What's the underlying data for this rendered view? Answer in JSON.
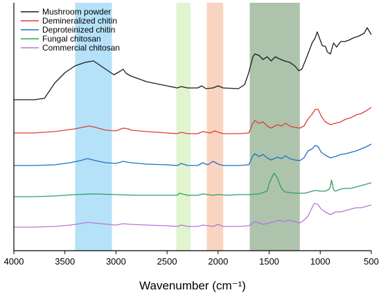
{
  "chart_data": {
    "type": "line",
    "title": "",
    "xlabel": "Wavenumber (cm⁻¹)",
    "ylabel": "",
    "xlim": [
      4000,
      500
    ],
    "x_reversed": true,
    "x_ticks": [
      4000,
      3500,
      3000,
      2500,
      2000,
      1500,
      1000,
      500
    ],
    "y_ticks_shown": false,
    "y_units": "arbitrary (stacked spectra)",
    "grid": false,
    "legend_position": "top-left",
    "highlight_bands": [
      {
        "from": 3400,
        "to": 3040,
        "color": "#a8ddf7"
      },
      {
        "from": 2410,
        "to": 2270,
        "color": "#dcf2c8"
      },
      {
        "from": 2110,
        "to": 1950,
        "color": "#f8cdb5"
      },
      {
        "from": 1690,
        "to": 1200,
        "color": "#9fb89c"
      }
    ],
    "series": [
      {
        "name": "Mushroom powder",
        "color": "#1a1a1a",
        "points": [
          [
            4000,
            144
          ],
          [
            3800,
            144
          ],
          [
            3700,
            142
          ],
          [
            3600,
            120
          ],
          [
            3500,
            105
          ],
          [
            3400,
            95
          ],
          [
            3300,
            90
          ],
          [
            3220,
            88
          ],
          [
            3120,
            98
          ],
          [
            3020,
            108
          ],
          [
            2960,
            103
          ],
          [
            2930,
            100
          ],
          [
            2900,
            106
          ],
          [
            2850,
            110
          ],
          [
            2700,
            118
          ],
          [
            2500,
            124
          ],
          [
            2400,
            127
          ],
          [
            2360,
            125
          ],
          [
            2300,
            127
          ],
          [
            2200,
            127
          ],
          [
            2160,
            124
          ],
          [
            2120,
            128
          ],
          [
            2050,
            127
          ],
          [
            2000,
            124
          ],
          [
            1950,
            127
          ],
          [
            1800,
            128
          ],
          [
            1740,
            122
          ],
          [
            1700,
            105
          ],
          [
            1660,
            82
          ],
          [
            1640,
            78
          ],
          [
            1600,
            80
          ],
          [
            1560,
            86
          ],
          [
            1520,
            82
          ],
          [
            1480,
            88
          ],
          [
            1440,
            82
          ],
          [
            1400,
            85
          ],
          [
            1350,
            88
          ],
          [
            1300,
            90
          ],
          [
            1250,
            95
          ],
          [
            1210,
            102
          ],
          [
            1180,
            100
          ],
          [
            1120,
            78
          ],
          [
            1080,
            62
          ],
          [
            1050,
            55
          ],
          [
            1030,
            46
          ],
          [
            1000,
            58
          ],
          [
            980,
            66
          ],
          [
            950,
            67
          ],
          [
            930,
            75
          ],
          [
            900,
            78
          ],
          [
            870,
            62
          ],
          [
            840,
            68
          ],
          [
            800,
            60
          ],
          [
            760,
            60
          ],
          [
            720,
            58
          ],
          [
            680,
            55
          ],
          [
            620,
            52
          ],
          [
            570,
            48
          ],
          [
            540,
            40
          ],
          [
            500,
            50
          ]
        ]
      },
      {
        "name": "Demineralized chitin",
        "color": "#e03c31",
        "points": [
          [
            4000,
            192
          ],
          [
            3800,
            192
          ],
          [
            3600,
            190
          ],
          [
            3500,
            188
          ],
          [
            3400,
            186
          ],
          [
            3300,
            183
          ],
          [
            3260,
            182
          ],
          [
            3200,
            184
          ],
          [
            3100,
            188
          ],
          [
            3000,
            189
          ],
          [
            2930,
            185
          ],
          [
            2880,
            186
          ],
          [
            2850,
            188
          ],
          [
            2700,
            190
          ],
          [
            2500,
            192
          ],
          [
            2400,
            193
          ],
          [
            2360,
            191
          ],
          [
            2300,
            193
          ],
          [
            2200,
            193
          ],
          [
            2150,
            190
          ],
          [
            2080,
            192
          ],
          [
            2030,
            189
          ],
          [
            2000,
            191
          ],
          [
            1950,
            193
          ],
          [
            1800,
            193
          ],
          [
            1700,
            192
          ],
          [
            1660,
            178
          ],
          [
            1640,
            174
          ],
          [
            1600,
            178
          ],
          [
            1560,
            176
          ],
          [
            1520,
            182
          ],
          [
            1480,
            185
          ],
          [
            1420,
            180
          ],
          [
            1380,
            182
          ],
          [
            1340,
            178
          ],
          [
            1300,
            182
          ],
          [
            1250,
            184
          ],
          [
            1200,
            185
          ],
          [
            1160,
            182
          ],
          [
            1120,
            172
          ],
          [
            1080,
            165
          ],
          [
            1050,
            158
          ],
          [
            1020,
            158
          ],
          [
            990,
            168
          ],
          [
            950,
            176
          ],
          [
            900,
            180
          ],
          [
            850,
            178
          ],
          [
            800,
            176
          ],
          [
            750,
            172
          ],
          [
            700,
            170
          ],
          [
            650,
            166
          ],
          [
            600,
            164
          ],
          [
            550,
            160
          ],
          [
            500,
            155
          ]
        ]
      },
      {
        "name": "Deproteinized chitin",
        "color": "#1f6fc5",
        "points": [
          [
            4000,
            239
          ],
          [
            3800,
            239
          ],
          [
            3600,
            238
          ],
          [
            3450,
            235
          ],
          [
            3350,
            232
          ],
          [
            3280,
            229
          ],
          [
            3200,
            232
          ],
          [
            3100,
            235
          ],
          [
            3000,
            236
          ],
          [
            2930,
            233
          ],
          [
            2850,
            235
          ],
          [
            2700,
            237
          ],
          [
            2500,
            238
          ],
          [
            2400,
            239
          ],
          [
            2360,
            236
          ],
          [
            2300,
            239
          ],
          [
            2200,
            239
          ],
          [
            2150,
            235
          ],
          [
            2100,
            238
          ],
          [
            2050,
            233
          ],
          [
            2000,
            237
          ],
          [
            1950,
            239
          ],
          [
            1800,
            239
          ],
          [
            1700,
            238
          ],
          [
            1660,
            225
          ],
          [
            1640,
            222
          ],
          [
            1600,
            226
          ],
          [
            1560,
            223
          ],
          [
            1520,
            228
          ],
          [
            1480,
            231
          ],
          [
            1420,
            227
          ],
          [
            1380,
            229
          ],
          [
            1340,
            225
          ],
          [
            1300,
            229
          ],
          [
            1250,
            231
          ],
          [
            1200,
            232
          ],
          [
            1160,
            228
          ],
          [
            1120,
            218
          ],
          [
            1080,
            215
          ],
          [
            1050,
            210
          ],
          [
            1020,
            212
          ],
          [
            990,
            220
          ],
          [
            950,
            224
          ],
          [
            900,
            228
          ],
          [
            850,
            226
          ],
          [
            800,
            223
          ],
          [
            750,
            222
          ],
          [
            700,
            220
          ],
          [
            650,
            218
          ],
          [
            600,
            215
          ],
          [
            550,
            212
          ],
          [
            500,
            208
          ]
        ]
      },
      {
        "name": "Fungal chitosan",
        "color": "#2e9e62",
        "points": [
          [
            4000,
            284
          ],
          [
            3800,
            284
          ],
          [
            3600,
            283
          ],
          [
            3400,
            281
          ],
          [
            3200,
            280
          ],
          [
            3000,
            281
          ],
          [
            2800,
            282
          ],
          [
            2600,
            282
          ],
          [
            2400,
            282
          ],
          [
            2380,
            279
          ],
          [
            2300,
            282
          ],
          [
            2200,
            282
          ],
          [
            2150,
            280
          ],
          [
            2050,
            282
          ],
          [
            2000,
            281
          ],
          [
            1900,
            282
          ],
          [
            1800,
            281
          ],
          [
            1700,
            281
          ],
          [
            1600,
            280
          ],
          [
            1560,
            278
          ],
          [
            1520,
            276
          ],
          [
            1500,
            265
          ],
          [
            1470,
            255
          ],
          [
            1450,
            250
          ],
          [
            1420,
            257
          ],
          [
            1400,
            265
          ],
          [
            1380,
            272
          ],
          [
            1350,
            277
          ],
          [
            1300,
            278
          ],
          [
            1250,
            279
          ],
          [
            1200,
            279
          ],
          [
            1150,
            279
          ],
          [
            1100,
            277
          ],
          [
            1050,
            275
          ],
          [
            1000,
            276
          ],
          [
            950,
            276
          ],
          [
            920,
            274
          ],
          [
            900,
            270
          ],
          [
            890,
            260
          ],
          [
            880,
            266
          ],
          [
            870,
            274
          ],
          [
            850,
            276
          ],
          [
            800,
            273
          ],
          [
            750,
            272
          ],
          [
            700,
            272
          ],
          [
            650,
            270
          ],
          [
            600,
            268
          ],
          [
            550,
            266
          ],
          [
            500,
            264
          ]
        ]
      },
      {
        "name": "Commercial chitosan",
        "color": "#b476d8",
        "points": [
          [
            4000,
            328
          ],
          [
            3800,
            328
          ],
          [
            3600,
            327
          ],
          [
            3450,
            325
          ],
          [
            3350,
            323
          ],
          [
            3280,
            321
          ],
          [
            3150,
            323
          ],
          [
            3000,
            325
          ],
          [
            2930,
            323
          ],
          [
            2850,
            324
          ],
          [
            2700,
            325
          ],
          [
            2500,
            326
          ],
          [
            2400,
            327
          ],
          [
            2360,
            325
          ],
          [
            2300,
            327
          ],
          [
            2200,
            327
          ],
          [
            2150,
            325
          ],
          [
            2050,
            327
          ],
          [
            2000,
            324
          ],
          [
            1950,
            327
          ],
          [
            1800,
            327
          ],
          [
            1700,
            326
          ],
          [
            1660,
            322
          ],
          [
            1640,
            320
          ],
          [
            1600,
            322
          ],
          [
            1560,
            324
          ],
          [
            1500,
            322
          ],
          [
            1450,
            320
          ],
          [
            1400,
            318
          ],
          [
            1350,
            320
          ],
          [
            1300,
            318
          ],
          [
            1250,
            320
          ],
          [
            1200,
            322
          ],
          [
            1160,
            318
          ],
          [
            1120,
            312
          ],
          [
            1080,
            300
          ],
          [
            1060,
            294
          ],
          [
            1040,
            294
          ],
          [
            1020,
            296
          ],
          [
            990,
            302
          ],
          [
            950,
            306
          ],
          [
            900,
            310
          ],
          [
            850,
            306
          ],
          [
            800,
            306
          ],
          [
            750,
            304
          ],
          [
            700,
            302
          ],
          [
            650,
            300
          ],
          [
            600,
            300
          ],
          [
            550,
            298
          ],
          [
            500,
            296
          ]
        ]
      }
    ]
  }
}
